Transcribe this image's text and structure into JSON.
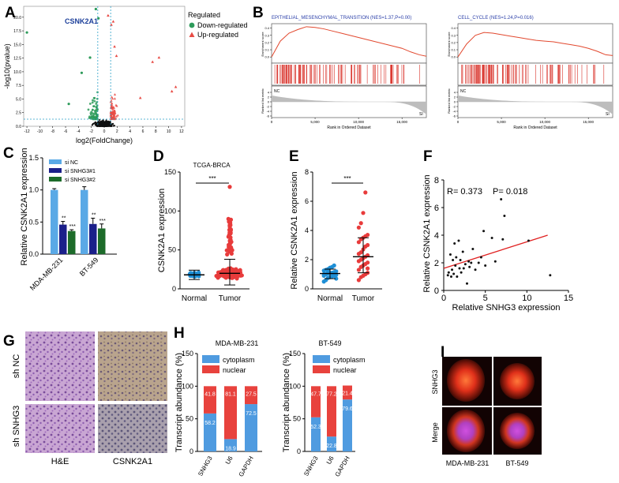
{
  "panel_letters": [
    "A",
    "B",
    "C",
    "D",
    "E",
    "F",
    "G",
    "H",
    "I"
  ],
  "chart_data": [
    {
      "id": "A",
      "type": "scatter",
      "title": "",
      "xlabel": "log2(FoldChange)",
      "ylabel": "-log10(pvalue)",
      "xlim": [
        -12.5,
        12.5
      ],
      "ylim": [
        0,
        22
      ],
      "xticks": [
        -12,
        -10,
        -8,
        -6,
        -4,
        -2,
        0,
        2,
        4,
        6,
        8,
        10,
        12
      ],
      "yticks": [
        0,
        2.5,
        5,
        7.5,
        10,
        12.5,
        15,
        17.5,
        20
      ],
      "gene_label": "CSNK2A1",
      "thresholds": {
        "x": [
          -1,
          1
        ],
        "y": 1.3
      },
      "legend": {
        "title": "Regulated",
        "items": [
          "Down-regulated",
          "Up-regulated"
        ]
      },
      "colors": {
        "down": "#2e9b5b",
        "up": "#e84b45",
        "ns": "#111111",
        "threshold": "#2aa0c8"
      },
      "highlight": [
        {
          "x": -12,
          "y": 17.2,
          "group": "down"
        },
        {
          "x": -1.3,
          "y": 21.5,
          "group": "down"
        },
        {
          "x": -0.9,
          "y": 19.8,
          "group": "down"
        },
        {
          "x": 0.6,
          "y": 20.3,
          "group": "up"
        },
        {
          "x": 1.1,
          "y": 18.6,
          "group": "up"
        },
        {
          "x": 1.4,
          "y": 19.2,
          "group": "up"
        },
        {
          "x": 1.6,
          "y": 14.6,
          "group": "up"
        },
        {
          "x": 1.9,
          "y": 12.9,
          "group": "up"
        },
        {
          "x": 7.5,
          "y": 11.8,
          "group": "up"
        },
        {
          "x": 8.5,
          "y": 12.6,
          "group": "up"
        },
        {
          "x": 10.5,
          "y": 6.4,
          "group": "up"
        },
        {
          "x": 11.1,
          "y": 7.2,
          "group": "up"
        },
        {
          "x": -2.2,
          "y": 12.6,
          "group": "down"
        },
        {
          "x": -3.5,
          "y": 9.8,
          "group": "down"
        },
        {
          "x": -5.5,
          "y": 4.1,
          "group": "down"
        },
        {
          "x": 5.6,
          "y": 5.2,
          "group": "up"
        }
      ]
    },
    {
      "id": "B1",
      "type": "line",
      "title": "EPITHELIAL_MESENCHYMAL_TRANSITION (NES=1.37,P=0.00)",
      "xlabel": "Rank in Ordered Dataset",
      "ylabel_top": "Enrichment score",
      "ylabel_bottom": "Ranked list metric",
      "xticks": [
        0,
        5000,
        10000,
        15000
      ],
      "yticks_top": [
        0.4,
        0.3,
        0.2,
        0.1,
        0.0
      ],
      "yticks_bottom": [
        4,
        2,
        0,
        -2,
        -4,
        -6
      ],
      "corner_left": "NC",
      "corner_right": "SI",
      "x": [
        0,
        1000,
        2000,
        3000,
        4000,
        5000,
        6000,
        7000,
        8000,
        9000,
        10000,
        11000,
        12000,
        13000,
        14000,
        15000,
        16000,
        17000,
        17800
      ],
      "es": [
        0.0,
        0.22,
        0.33,
        0.38,
        0.42,
        0.41,
        0.39,
        0.36,
        0.33,
        0.3,
        0.27,
        0.24,
        0.21,
        0.18,
        0.15,
        0.12,
        0.07,
        0.03,
        0.01
      ]
    },
    {
      "id": "B2",
      "type": "line",
      "title": "CELL_CYCLE (NES=1.24,P=0.016)",
      "xlabel": "Rank in Ordered Dataset",
      "ylabel_top": "Enrichment score",
      "ylabel_bottom": "Ranked list metric",
      "xticks": [
        0,
        5000,
        10000,
        15000
      ],
      "yticks_top": [
        0.4,
        0.3,
        0.2,
        0.1,
        0.0
      ],
      "yticks_bottom": [
        4,
        2,
        0,
        -2,
        -4,
        -6
      ],
      "corner_left": "NC",
      "corner_right": "SI",
      "x": [
        0,
        1000,
        2000,
        3000,
        4000,
        5000,
        6000,
        7000,
        8000,
        9000,
        10000,
        11000,
        12000,
        13000,
        14000,
        15000,
        16000,
        17000,
        17800
      ],
      "es": [
        0.0,
        0.18,
        0.3,
        0.34,
        0.33,
        0.31,
        0.29,
        0.27,
        0.25,
        0.23,
        0.22,
        0.21,
        0.19,
        0.17,
        0.15,
        0.12,
        0.08,
        0.03,
        0.02
      ]
    },
    {
      "id": "C",
      "type": "bar",
      "ylabel": "Relative CSNK2A1 expression",
      "ylim": [
        0,
        1.5
      ],
      "yticks": [
        0.0,
        0.5,
        1.0,
        1.5
      ],
      "categories": [
        "MDA-MB-231",
        "BT-549"
      ],
      "series": [
        {
          "name": "si NC",
          "values": [
            1.0,
            1.0
          ],
          "err": [
            0.02,
            0.05
          ],
          "color": "#5aa9e6"
        },
        {
          "name": "si SNHG3#1",
          "values": [
            0.46,
            0.47
          ],
          "err": [
            0.05,
            0.09
          ],
          "color": "#1b1f8a"
        },
        {
          "name": "si SNHG3#2",
          "values": [
            0.36,
            0.4
          ],
          "err": [
            0.02,
            0.07
          ],
          "color": "#1d6b2a"
        }
      ],
      "stars": [
        [
          "",
          "**",
          "***"
        ],
        [
          "",
          "**",
          "***"
        ]
      ]
    },
    {
      "id": "D",
      "type": "scatter",
      "title": "TCGA-BRCA",
      "ylabel": "CSNK2A1 expression",
      "ylim": [
        0,
        150
      ],
      "yticks": [
        0,
        50,
        100,
        150
      ],
      "categories": [
        "Normal",
        "Tumor"
      ],
      "medians": [
        18,
        20
      ],
      "sd_range": [
        [
          12,
          24
        ],
        [
          5,
          38
        ]
      ],
      "max_tumor": 131,
      "significance": "***",
      "color": "#1f8fd6",
      "color_tumor": "#e83b3b"
    },
    {
      "id": "E",
      "type": "scatter",
      "ylabel": "Relative CSNK2A1 expression",
      "ylim": [
        0,
        8
      ],
      "yticks": [
        0,
        2,
        4,
        6,
        8
      ],
      "categories": [
        "Normal",
        "Tumor"
      ],
      "medians": [
        1.05,
        2.2
      ],
      "sd_range": [
        [
          0.7,
          1.35
        ],
        [
          1.1,
          3.5
        ]
      ],
      "normal_values": [
        0.5,
        0.6,
        0.75,
        0.8,
        0.85,
        0.9,
        0.95,
        1.0,
        1.0,
        1.05,
        1.1,
        1.1,
        1.15,
        1.2,
        1.25,
        1.3,
        1.35,
        1.45,
        1.5,
        1.6,
        0.7,
        0.9,
        1.0,
        1.2
      ],
      "tumor_values": [
        0.6,
        0.8,
        0.9,
        1.0,
        1.1,
        1.3,
        1.5,
        1.6,
        1.7,
        1.8,
        1.9,
        2.0,
        2.1,
        2.2,
        2.3,
        2.4,
        2.5,
        2.7,
        2.9,
        3.0,
        3.2,
        3.4,
        3.5,
        3.6,
        3.7,
        4.2,
        4.5,
        5.2,
        6.6,
        1.4
      ],
      "significance": "***",
      "color": "#1f8fd6",
      "color_tumor": "#e83b3b"
    },
    {
      "id": "F",
      "type": "scatter",
      "xlabel": "Relative SNHG3 expression",
      "ylabel": "Relative CSNK2A1 expression",
      "xlim": [
        0,
        15
      ],
      "ylim": [
        0,
        8
      ],
      "xticks": [
        0,
        5,
        10,
        15
      ],
      "yticks": [
        0,
        2,
        4,
        6,
        8
      ],
      "annotation_r": "R= 0.373",
      "annotation_p": "P= 0.018",
      "points": [
        [
          0.5,
          1.1
        ],
        [
          0.6,
          1.3
        ],
        [
          0.8,
          2.6
        ],
        [
          0.9,
          1.0
        ],
        [
          1.0,
          1.5
        ],
        [
          1.1,
          2.2
        ],
        [
          1.2,
          1.2
        ],
        [
          1.3,
          3.4
        ],
        [
          1.4,
          1.8
        ],
        [
          1.5,
          2.4
        ],
        [
          1.6,
          1.0
        ],
        [
          1.8,
          3.6
        ],
        [
          1.9,
          1.6
        ],
        [
          2.0,
          2.2
        ],
        [
          2.1,
          1.3
        ],
        [
          2.3,
          2.8
        ],
        [
          2.4,
          1.6
        ],
        [
          2.6,
          1.9
        ],
        [
          2.8,
          0.5
        ],
        [
          3.0,
          2.1
        ],
        [
          3.1,
          1.7
        ],
        [
          3.3,
          2.0
        ],
        [
          3.5,
          3.0
        ],
        [
          3.8,
          1.5
        ],
        [
          4.2,
          2.0
        ],
        [
          4.5,
          2.4
        ],
        [
          4.8,
          4.3
        ],
        [
          5.0,
          1.8
        ],
        [
          5.8,
          3.8
        ],
        [
          6.2,
          2.1
        ],
        [
          6.9,
          6.6
        ],
        [
          7.1,
          3.7
        ],
        [
          7.3,
          5.4
        ],
        [
          10.2,
          3.6
        ],
        [
          12.8,
          1.1
        ]
      ],
      "fit": {
        "x": [
          0,
          12.5
        ],
        "y": [
          1.6,
          4.0
        ]
      },
      "colors": {
        "points": "#111111",
        "fit": "#e02020"
      }
    },
    {
      "id": "H1",
      "type": "bar",
      "stacked": true,
      "title": "MDA-MB-231",
      "ylabel": "Transcript abundance (%)",
      "ylim": [
        0,
        150
      ],
      "yticks": [
        0,
        50,
        100,
        150
      ],
      "categories": [
        "SNHG3",
        "U6",
        "GAPDH"
      ],
      "series": [
        {
          "name": "cytoplasm",
          "values": [
            58.2,
            18.9,
            72.5
          ],
          "color": "#4f9be0"
        },
        {
          "name": "nuclear",
          "values": [
            41.8,
            81.1,
            27.5
          ],
          "color": "#e8423d"
        }
      ]
    },
    {
      "id": "H2",
      "type": "bar",
      "stacked": true,
      "title": "BT-549",
      "ylabel": "Transcript abundance (%)",
      "ylim": [
        0,
        150
      ],
      "yticks": [
        0,
        50,
        100,
        150
      ],
      "categories": [
        "SNHG3",
        "U6",
        "GAPDH"
      ],
      "series": [
        {
          "name": "cytoplasm",
          "values": [
            52.3,
            22.8,
            79.6
          ],
          "color": "#4f9be0"
        },
        {
          "name": "nuclear",
          "values": [
            47.7,
            77.2,
            21.4
          ],
          "color": "#e8423d"
        }
      ]
    }
  ],
  "panel_g": {
    "rows": [
      "sh NC",
      "sh SNHG3"
    ],
    "cols": [
      "H&E",
      "CSNK2A1"
    ]
  },
  "panel_i": {
    "rows": [
      "SNHG3",
      "Merge"
    ],
    "cols": [
      "MDA-MB-231",
      "BT-549"
    ]
  }
}
